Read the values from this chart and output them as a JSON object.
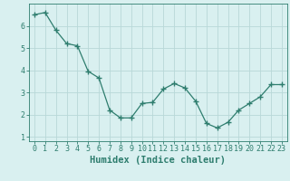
{
  "x": [
    0,
    1,
    2,
    3,
    4,
    5,
    6,
    7,
    8,
    9,
    10,
    11,
    12,
    13,
    14,
    15,
    16,
    17,
    18,
    19,
    20,
    21,
    22,
    23
  ],
  "y": [
    6.5,
    6.6,
    5.8,
    5.2,
    5.1,
    3.95,
    3.65,
    2.2,
    1.85,
    1.85,
    2.5,
    2.55,
    3.15,
    3.4,
    3.2,
    2.6,
    1.6,
    1.4,
    1.65,
    2.2,
    2.5,
    2.8,
    3.35,
    3.35
  ],
  "xlabel": "Humidex (Indice chaleur)",
  "line_color": "#2e7d6e",
  "marker": "+",
  "marker_size": 4,
  "bg_color": "#d9f0f0",
  "grid_color": "#b8d8d8",
  "tick_color": "#2e7d6e",
  "label_color": "#2e7d6e",
  "ylim": [
    0.8,
    7.0
  ],
  "xlim": [
    -0.5,
    23.5
  ],
  "yticks": [
    1,
    2,
    3,
    4,
    5,
    6
  ],
  "xticks": [
    0,
    1,
    2,
    3,
    4,
    5,
    6,
    7,
    8,
    9,
    10,
    11,
    12,
    13,
    14,
    15,
    16,
    17,
    18,
    19,
    20,
    21,
    22,
    23
  ],
  "tick_fontsize": 6,
  "xlabel_fontsize": 7.5
}
